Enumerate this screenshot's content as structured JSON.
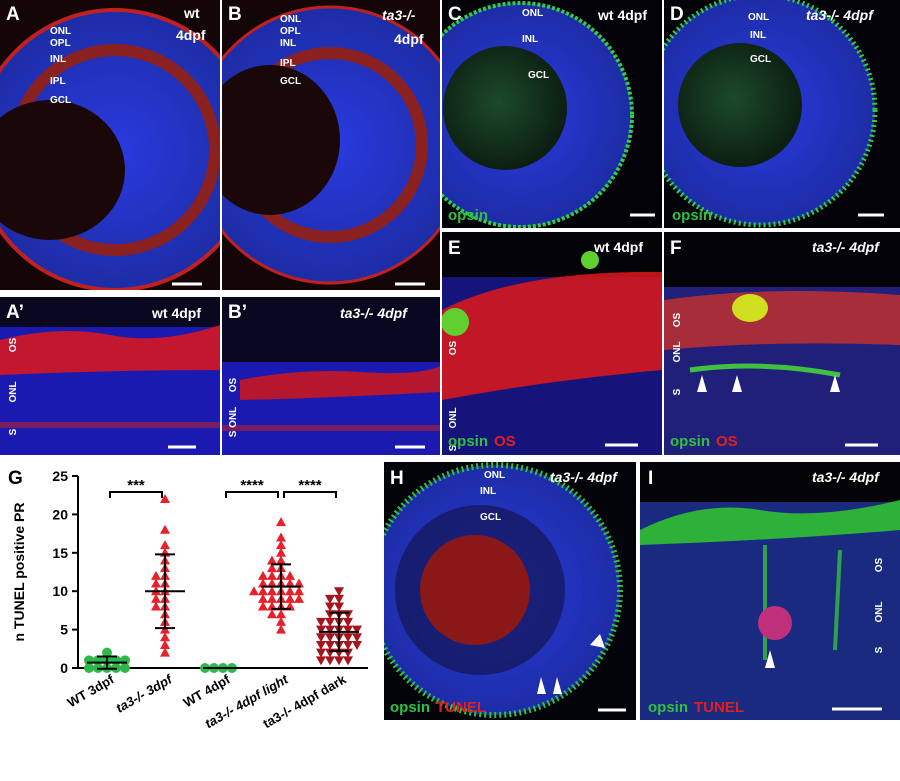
{
  "panels": {
    "A": {
      "letter": "A",
      "genotype": "wt",
      "stage": "4dpf",
      "layers": [
        "ONL",
        "OPL",
        "INL",
        "IPL",
        "GCL"
      ]
    },
    "B": {
      "letter": "B",
      "genotype": "ta3-/-",
      "stage": "4dpf",
      "layers": [
        "ONL",
        "OPL",
        "INL",
        "IPL",
        "GCL"
      ]
    },
    "C": {
      "letter": "C",
      "title": "wt 4dpf",
      "layers": [
        "ONL",
        "INL",
        "GCL"
      ],
      "stain": "opsin"
    },
    "D": {
      "letter": "D",
      "title": "ta3-/- 4dpf",
      "layers": [
        "ONL",
        "INL",
        "GCL"
      ],
      "stain": "opsin"
    },
    "A2": {
      "letter": "A’",
      "title": "wt 4dpf",
      "layers": [
        "OS",
        "ONL",
        "S"
      ]
    },
    "B2": {
      "letter": "B’",
      "title": "ta3-/- 4dpf",
      "layers": [
        "OS",
        "S ONL"
      ]
    },
    "E": {
      "letter": "E",
      "title": "wt 4dpf",
      "layers": [
        "OS",
        "ONL",
        "S"
      ],
      "stain": [
        "opsin",
        "OS"
      ]
    },
    "F": {
      "letter": "F",
      "title": "ta3-/- 4dpf",
      "layers": [
        "OS",
        "ONL",
        "S"
      ],
      "stain": [
        "opsin",
        "OS"
      ]
    },
    "H": {
      "letter": "H",
      "title": "ta3-/- 4dpf",
      "layers": [
        "ONL",
        "INL",
        "GCL"
      ],
      "stain": [
        "opsin",
        "TUNEL"
      ]
    },
    "I": {
      "letter": "I",
      "title": "ta3-/- 4dpf",
      "layers": [
        "OS",
        "ONL",
        "S"
      ],
      "stain": [
        "opsin",
        "TUNEL"
      ]
    }
  },
  "chart_data": {
    "type": "strip",
    "panel_letter": "G",
    "y_label": "n TUNEL positive PR",
    "categories": [
      "WT 3dpf",
      "ta3-/- 3dpf",
      "WT 4dpf",
      "ta3-/- 4dpf light",
      "ta3-/- 4dpf  dark"
    ],
    "groups": [
      {
        "color": "#2fb84a",
        "marker": "circle",
        "values": [
          0,
          0,
          0,
          0,
          1,
          1,
          1,
          1,
          2,
          0,
          1
        ],
        "mean": 0.7,
        "sd": 0.8
      },
      {
        "color": "#e8202a",
        "marker": "triangle",
        "values": [
          22,
          18,
          16,
          15,
          14,
          13,
          12,
          12,
          11,
          11,
          10,
          10,
          9,
          9,
          8,
          8,
          7,
          6,
          5,
          4,
          3,
          2
        ],
        "mean": 10,
        "sd": 4.8
      },
      {
        "color": "#2fb84a",
        "marker": "circle",
        "values": [
          0,
          0,
          0,
          0
        ],
        "mean": 0,
        "sd": 0
      },
      {
        "color": "#e8202a",
        "marker": "triangle",
        "values": [
          19,
          17,
          16,
          15,
          14,
          14,
          13,
          13,
          12,
          12,
          12,
          12,
          11,
          11,
          11,
          11,
          11,
          10,
          10,
          10,
          10,
          10,
          10,
          9,
          9,
          9,
          9,
          9,
          8,
          8,
          8,
          8,
          7,
          7,
          6,
          5
        ],
        "mean": 10.6,
        "sd": 2.9
      },
      {
        "color": "#a8141c",
        "marker": "triangle-down",
        "values": [
          10,
          9,
          9,
          8,
          8,
          7,
          7,
          7,
          6,
          6,
          6,
          6,
          5,
          5,
          5,
          5,
          5,
          4,
          4,
          4,
          4,
          4,
          3,
          3,
          3,
          3,
          3,
          2,
          2,
          2,
          2,
          1,
          1,
          1,
          1
        ],
        "mean": 4.7,
        "sd": 2.5
      }
    ],
    "ylim": [
      0,
      25
    ],
    "yticks": [
      0,
      5,
      10,
      15,
      20,
      25
    ],
    "annotations": [
      "***",
      "****",
      "****"
    ]
  }
}
